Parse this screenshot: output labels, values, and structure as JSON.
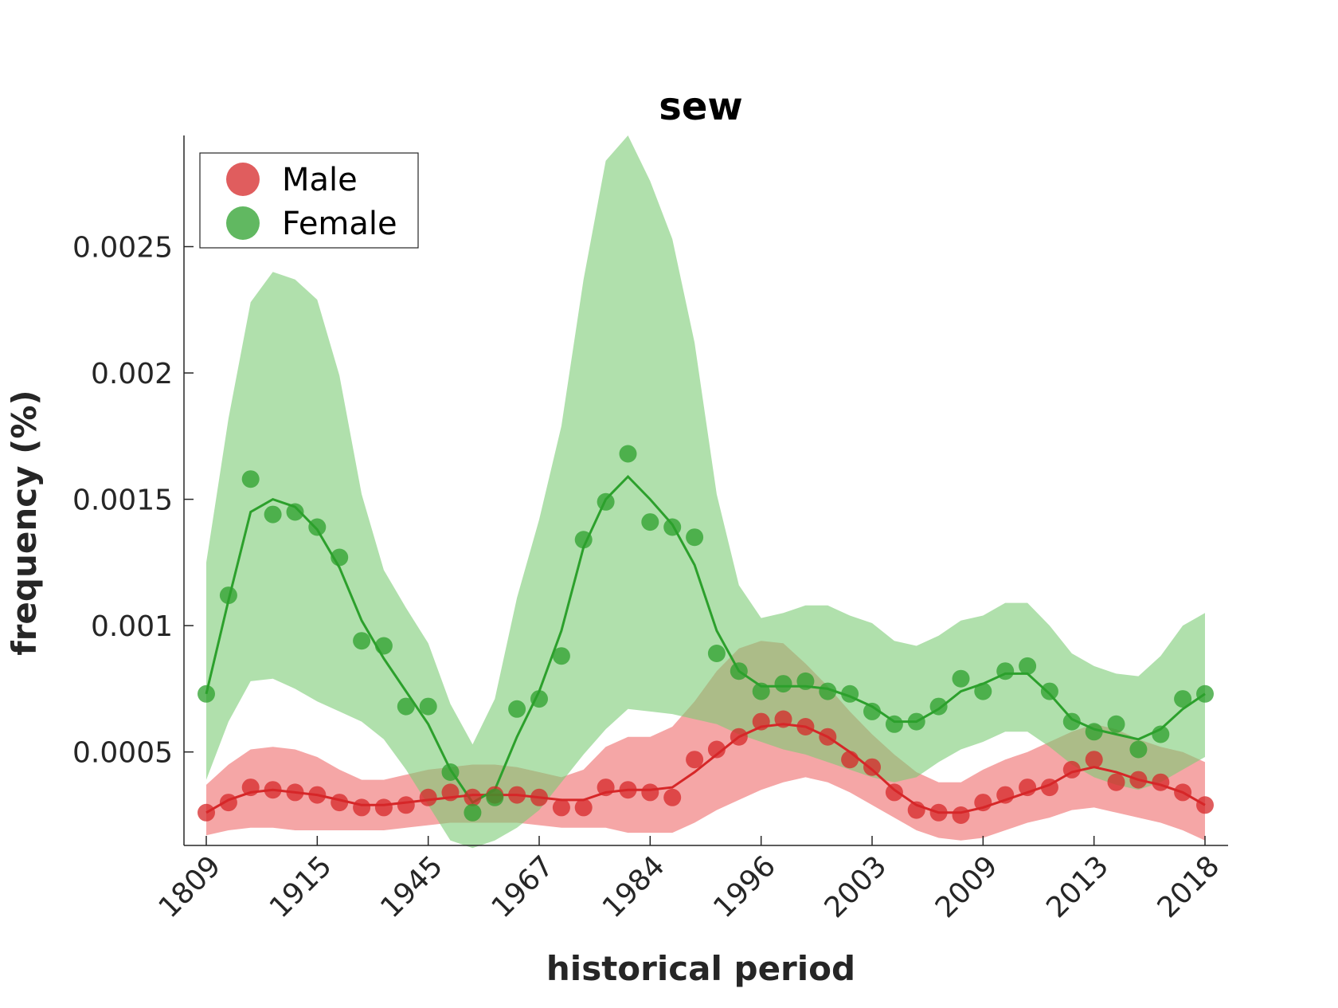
{
  "chart_data": {
    "type": "line",
    "title": "sew",
    "xlabel": "historical period",
    "ylabel": "frequency (%)",
    "categories": [
      "1809",
      "",
      "",
      "",
      "",
      "1915",
      "",
      "",
      "",
      "",
      "1945",
      "",
      "",
      "",
      "",
      "1967",
      "",
      "",
      "",
      "",
      "1984",
      "",
      "",
      "",
      "",
      "1996",
      "",
      "",
      "",
      "",
      "2003",
      "",
      "",
      "",
      "",
      "2009",
      "",
      "",
      "",
      "",
      "2013",
      "",
      "",
      "",
      "",
      "2018"
    ],
    "x_tick_labels": [
      "1809",
      "1915",
      "1945",
      "1967",
      "1984",
      "1996",
      "2003",
      "2009",
      "2013",
      "2018"
    ],
    "y_tick_values": [
      0.0005,
      0.001,
      0.0015,
      0.002,
      0.0025
    ],
    "y_tick_labels": [
      "0.0005",
      "0.001",
      "0.0015",
      "0.002",
      "0.0025"
    ],
    "ylim": [
      0.00013,
      0.00294
    ],
    "grid": false,
    "legend_position": "top-left",
    "series": [
      {
        "name": "Male",
        "color": "#d62728",
        "band_color": "#ee6a6a",
        "points": [
          0.00026,
          0.0003,
          0.00036,
          0.00035,
          0.00034,
          0.00033,
          0.0003,
          0.00028,
          0.00028,
          0.00029,
          0.00032,
          0.00034,
          0.00032,
          0.00033,
          0.00033,
          0.00032,
          0.00028,
          0.00028,
          0.00036,
          0.00035,
          0.00034,
          0.00032,
          0.00047,
          0.00051,
          0.00056,
          0.00062,
          0.00063,
          0.0006,
          0.00056,
          0.00047,
          0.00044,
          0.00034,
          0.00027,
          0.00026,
          0.00025,
          0.0003,
          0.00033,
          0.00036,
          0.00036,
          0.00043,
          0.00047,
          0.00038,
          0.00039,
          0.00038,
          0.00034,
          0.00029
        ],
        "trend": [
          0.00026,
          0.00031,
          0.00034,
          0.00035,
          0.00034,
          0.00033,
          0.00031,
          0.00029,
          0.00029,
          0.0003,
          0.00031,
          0.00032,
          0.00033,
          0.00033,
          0.00033,
          0.00032,
          0.00031,
          0.00031,
          0.00034,
          0.00035,
          0.00035,
          0.00036,
          0.00042,
          0.00049,
          0.00056,
          0.0006,
          0.00061,
          0.0006,
          0.00056,
          0.0005,
          0.00043,
          0.00035,
          0.00029,
          0.00026,
          0.00026,
          0.00028,
          0.00031,
          0.00034,
          0.00037,
          0.00042,
          0.00044,
          0.00042,
          0.00039,
          0.00037,
          0.00034,
          0.00029
        ],
        "band_upper": [
          0.00037,
          0.00045,
          0.00051,
          0.00052,
          0.00051,
          0.00048,
          0.00043,
          0.00039,
          0.00039,
          0.00041,
          0.00043,
          0.00044,
          0.00045,
          0.00045,
          0.00044,
          0.00042,
          0.0004,
          0.00043,
          0.00052,
          0.00056,
          0.00056,
          0.0006,
          0.0007,
          0.00082,
          0.00091,
          0.00094,
          0.00093,
          0.00085,
          0.00076,
          0.00066,
          0.00057,
          0.00049,
          0.00042,
          0.00038,
          0.00038,
          0.00043,
          0.00047,
          0.0005,
          0.00054,
          0.00058,
          0.00061,
          0.00059,
          0.00055,
          0.00052,
          0.0005,
          0.00046
        ],
        "band_lower": [
          0.00017,
          0.00019,
          0.0002,
          0.0002,
          0.00019,
          0.00019,
          0.00019,
          0.00019,
          0.00019,
          0.0002,
          0.00021,
          0.00022,
          0.00022,
          0.00022,
          0.00022,
          0.00021,
          0.0002,
          0.0002,
          0.0002,
          0.00018,
          0.00018,
          0.00018,
          0.00022,
          0.00027,
          0.00031,
          0.00035,
          0.00038,
          0.0004,
          0.00038,
          0.00034,
          0.00029,
          0.00024,
          0.00019,
          0.00016,
          0.00015,
          0.00016,
          0.00019,
          0.00022,
          0.00024,
          0.00027,
          0.00028,
          0.00026,
          0.00024,
          0.00022,
          0.00019,
          0.00015
        ]
      },
      {
        "name": "Female",
        "color": "#2ca02c",
        "band_color": "#7ccc74",
        "points": [
          0.00073,
          0.00112,
          0.00158,
          0.00144,
          0.00145,
          0.00139,
          0.00127,
          0.00094,
          0.00092,
          0.00068,
          0.00068,
          0.00042,
          0.00026,
          0.00032,
          0.00067,
          0.00071,
          0.00088,
          0.00134,
          0.00149,
          0.00168,
          0.00141,
          0.00139,
          0.00135,
          0.00089,
          0.00082,
          0.00074,
          0.00077,
          0.00078,
          0.00074,
          0.00073,
          0.00066,
          0.00061,
          0.00062,
          0.00068,
          0.00079,
          0.00074,
          0.00082,
          0.00084,
          0.00074,
          0.00062,
          0.00058,
          0.00061,
          0.00051,
          0.00057,
          0.00071,
          0.00073
        ],
        "trend": [
          0.00073,
          0.0011,
          0.00145,
          0.0015,
          0.00147,
          0.00138,
          0.00123,
          0.00102,
          0.00087,
          0.00074,
          0.00061,
          0.00043,
          0.0003,
          0.00035,
          0.00056,
          0.00074,
          0.00098,
          0.00131,
          0.0015,
          0.00159,
          0.0015,
          0.0014,
          0.00124,
          0.00098,
          0.00082,
          0.00076,
          0.00076,
          0.00076,
          0.00075,
          0.00072,
          0.00068,
          0.00062,
          0.00062,
          0.00067,
          0.00074,
          0.00077,
          0.00081,
          0.00081,
          0.00073,
          0.00063,
          0.00059,
          0.00057,
          0.00055,
          0.00059,
          0.00067,
          0.00073
        ],
        "band_upper": [
          0.00125,
          0.00182,
          0.00228,
          0.0024,
          0.00237,
          0.00229,
          0.00199,
          0.00152,
          0.00122,
          0.00107,
          0.00093,
          0.00069,
          0.00053,
          0.00071,
          0.00111,
          0.00142,
          0.00179,
          0.00237,
          0.00284,
          0.00294,
          0.00276,
          0.00253,
          0.00212,
          0.00152,
          0.00116,
          0.00103,
          0.00105,
          0.00108,
          0.00108,
          0.00104,
          0.00101,
          0.00094,
          0.00092,
          0.00096,
          0.00102,
          0.00104,
          0.00109,
          0.00109,
          0.001,
          0.00089,
          0.00084,
          0.00081,
          0.0008,
          0.00088,
          0.001,
          0.00105
        ],
        "band_lower": [
          0.00039,
          0.00062,
          0.00078,
          0.00079,
          0.00075,
          0.0007,
          0.00066,
          0.00062,
          0.00055,
          0.00043,
          0.00029,
          0.00015,
          0.00012,
          0.00015,
          0.0002,
          0.00027,
          0.00038,
          0.00049,
          0.00059,
          0.00067,
          0.00066,
          0.00065,
          0.00063,
          0.00061,
          0.00057,
          0.00054,
          0.00051,
          0.00049,
          0.00046,
          0.00043,
          0.0004,
          0.00038,
          0.0004,
          0.00046,
          0.00051,
          0.00054,
          0.00058,
          0.00058,
          0.00052,
          0.00045,
          0.0004,
          0.00037,
          0.00035,
          0.00038,
          0.00043,
          0.00048
        ]
      }
    ]
  }
}
